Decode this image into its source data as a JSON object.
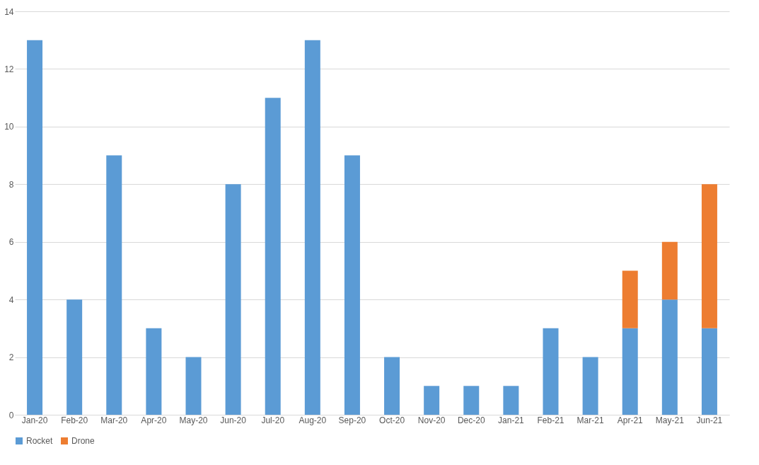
{
  "chart_data": {
    "type": "bar",
    "stacked": true,
    "categories": [
      "Jan-20",
      "Feb-20",
      "Mar-20",
      "Apr-20",
      "May-20",
      "Jun-20",
      "Jul-20",
      "Aug-20",
      "Sep-20",
      "Oct-20",
      "Nov-20",
      "Dec-20",
      "Jan-21",
      "Feb-21",
      "Mar-21",
      "Apr-21",
      "May-21",
      "Jun-21"
    ],
    "series": [
      {
        "name": "Rocket",
        "color": "#5b9bd5",
        "values": [
          13,
          4,
          9,
          3,
          2,
          8,
          11,
          13,
          9,
          2,
          1,
          1,
          1,
          3,
          2,
          3,
          4,
          3
        ]
      },
      {
        "name": "Drone",
        "color": "#ed7d31",
        "values": [
          null,
          null,
          null,
          null,
          null,
          null,
          null,
          null,
          null,
          null,
          null,
          null,
          null,
          null,
          null,
          2,
          2,
          5
        ]
      }
    ],
    "ylim": [
      0,
      14
    ],
    "yticks": [
      0,
      2,
      4,
      6,
      8,
      10,
      12,
      14
    ],
    "grid": "y",
    "legend": "bottom"
  }
}
